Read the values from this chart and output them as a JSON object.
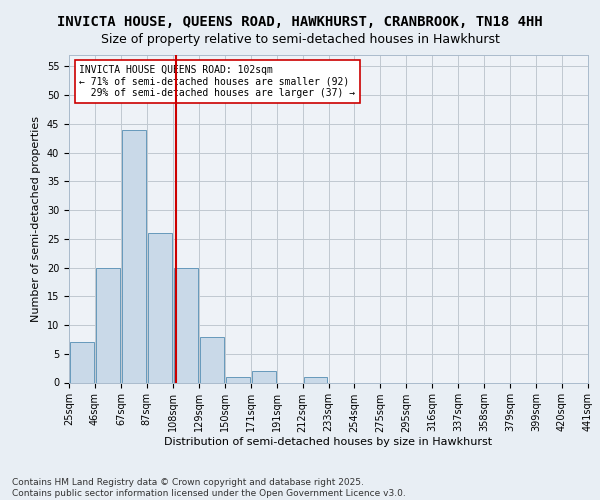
{
  "title": "INVICTA HOUSE, QUEENS ROAD, HAWKHURST, CRANBROOK, TN18 4HH",
  "subtitle": "Size of property relative to semi-detached houses in Hawkhurst",
  "xlabel": "Distribution of semi-detached houses by size in Hawkhurst",
  "ylabel": "Number of semi-detached properties",
  "tick_labels": [
    "25sqm",
    "46sqm",
    "67sqm",
    "87sqm",
    "108sqm",
    "129sqm",
    "150sqm",
    "171sqm",
    "191sqm",
    "212sqm",
    "233sqm",
    "254sqm",
    "275sqm",
    "295sqm",
    "316sqm",
    "337sqm",
    "358sqm",
    "379sqm",
    "399sqm",
    "420sqm",
    "441sqm"
  ],
  "values": [
    7,
    20,
    44,
    26,
    20,
    8,
    1,
    2,
    0,
    1,
    0,
    0,
    0,
    0,
    0,
    0,
    0,
    0,
    0,
    0
  ],
  "bar_color": "#c9d9e8",
  "bar_edge_color": "#6699bb",
  "grid_color": "#c0c8d0",
  "background_color": "#e8eef4",
  "plot_bg_color": "#eef2f7",
  "vline_x": 3.63,
  "vline_color": "#cc0000",
  "annotation_text": "INVICTA HOUSE QUEENS ROAD: 102sqm\n← 71% of semi-detached houses are smaller (92)\n  29% of semi-detached houses are larger (37) →",
  "annotation_box_color": "#cc0000",
  "ylim": [
    0,
    57
  ],
  "yticks": [
    0,
    5,
    10,
    15,
    20,
    25,
    30,
    35,
    40,
    45,
    50,
    55
  ],
  "footer": "Contains HM Land Registry data © Crown copyright and database right 2025.\nContains public sector information licensed under the Open Government Licence v3.0.",
  "title_fontsize": 10,
  "subtitle_fontsize": 9,
  "axis_label_fontsize": 8,
  "tick_fontsize": 7,
  "annotation_fontsize": 7,
  "footer_fontsize": 6.5
}
